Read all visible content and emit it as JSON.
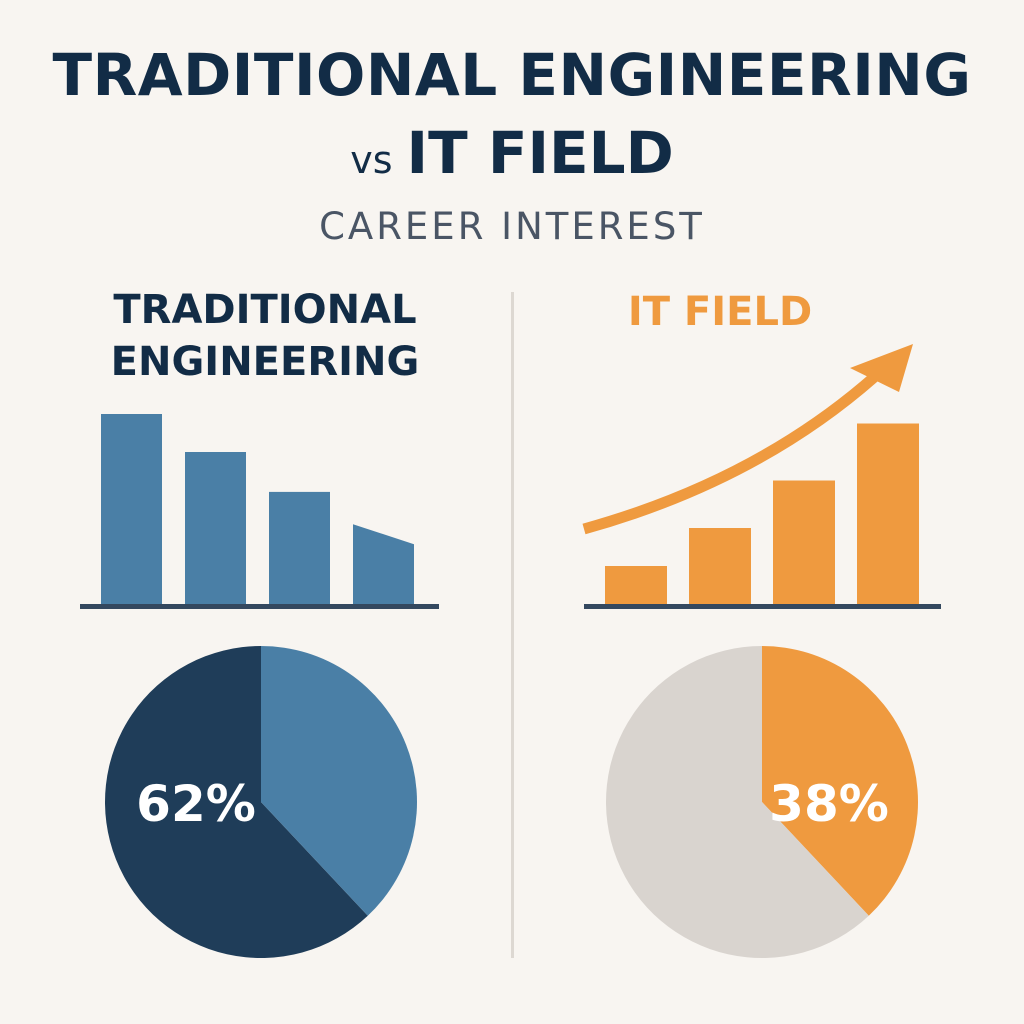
{
  "header": {
    "title_line1": "TRADITIONAL ENGINEERING",
    "title_vs": "vs",
    "title_line2": "IT FIELD",
    "subtitle": "CAREER INTEREST"
  },
  "chart_data": [
    {
      "type": "bar",
      "title": "TRADITIONAL ENGINEERING",
      "series": [
        {
          "name": "Career interest",
          "values": [
            100,
            80,
            59,
            42
          ]
        }
      ],
      "categories": [
        "",
        "",
        "",
        ""
      ],
      "color": "#4a7fa6"
    },
    {
      "type": "bar",
      "title": "IT FIELD",
      "series": [
        {
          "name": "Career interest",
          "values": [
            20,
            40,
            65,
            95
          ]
        }
      ],
      "categories": [
        "",
        "",
        "",
        ""
      ],
      "trend_arrow": true,
      "color": "#ef9a3f"
    },
    {
      "type": "pie",
      "title": "TRADITIONAL ENGINEERING",
      "slices": [
        {
          "name": "highlighted",
          "value": 62,
          "label": "62%",
          "color": "#1f3d59"
        },
        {
          "name": "other",
          "value": 38,
          "label": "",
          "color": "#4a7fa6"
        }
      ]
    },
    {
      "type": "pie",
      "title": "IT FIELD",
      "slices": [
        {
          "name": "highlighted",
          "value": 38,
          "label": "38%",
          "color": "#ef9a3f"
        },
        {
          "name": "other",
          "value": 62,
          "label": "",
          "color": "#d9d4cf"
        }
      ]
    }
  ],
  "colors": {
    "background": "#f8f5f1",
    "navy": "#122c46",
    "steel_blue": "#4a7fa6",
    "orange": "#ef9a3f",
    "axis": "#34485f"
  }
}
